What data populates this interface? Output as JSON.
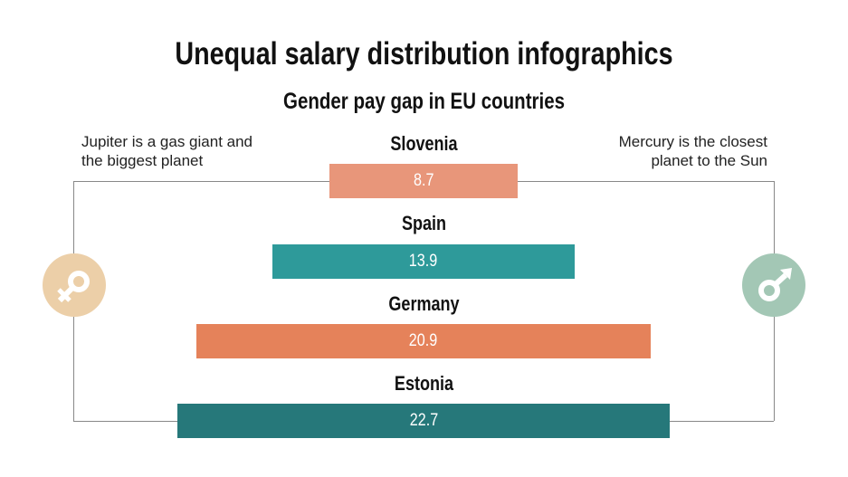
{
  "title": "Unequal salary distribution infographics",
  "chart_data": {
    "type": "bar",
    "orientation": "horizontal-centered",
    "title": "Gender pay gap in EU countries",
    "categories": [
      "Slovenia",
      "Spain",
      "Germany",
      "Estonia"
    ],
    "values": [
      8.7,
      13.9,
      20.9,
      22.7
    ],
    "colors": [
      "#e8967a",
      "#2e9a9a",
      "#e5825a",
      "#26787a"
    ]
  },
  "notes": {
    "left": "Jupiter is a gas giant and the biggest planet",
    "right": "Mercury is the closest planet to the Sun"
  },
  "icons": {
    "left": {
      "name": "female-symbol",
      "color": "#eccfa8"
    },
    "right": {
      "name": "male-symbol",
      "color": "#a3c7b5"
    }
  }
}
